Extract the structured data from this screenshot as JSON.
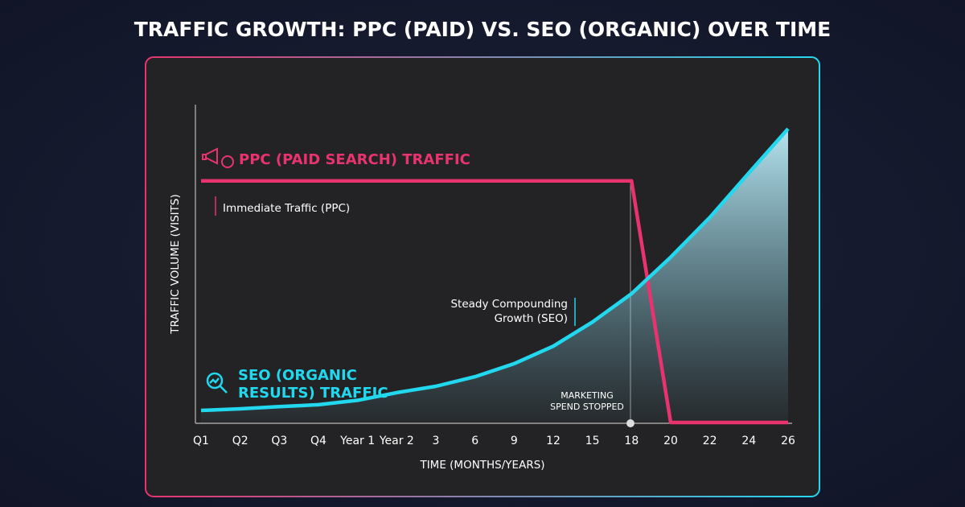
{
  "chart_data": {
    "type": "line",
    "title": "TRAFFIC GROWTH: PPC (PAID) VS. SEO (ORGANIC) OVER TIME",
    "x_label": "TIME (MONTHS/YEARS)",
    "y_label": "TRAFFIC VOLUME (VISITS)",
    "categories": [
      "Q1",
      "Q2",
      "Q3",
      "Q4",
      "Year 1",
      "Year 2",
      "3",
      "6",
      "9",
      "12",
      "15",
      "18",
      "20",
      "22",
      "24",
      "26"
    ],
    "ylim": [
      0,
      100
    ],
    "series": [
      {
        "name": "PPC (PAID SEARCH) TRAFFIC",
        "color": "#e8336f",
        "values": [
          76,
          76,
          76,
          76,
          76,
          76,
          76,
          76,
          76,
          76,
          76,
          76,
          0,
          0,
          0,
          0
        ]
      },
      {
        "name": "SEO (ORGANIC RESULTS) TRAFFIC",
        "color": "#22d8ef",
        "values": [
          3.8,
          4.3,
          5,
          5.6,
          7,
          9.4,
          11.4,
          14.4,
          18.5,
          24,
          31.6,
          40.5,
          52,
          64.5,
          78.5,
          92.4
        ]
      }
    ],
    "annotations": [
      "Immediate Traffic (PPC)",
      "Steady Compounding Growth (SEO)",
      "MARKETING SPEND STOPPED"
    ]
  }
}
